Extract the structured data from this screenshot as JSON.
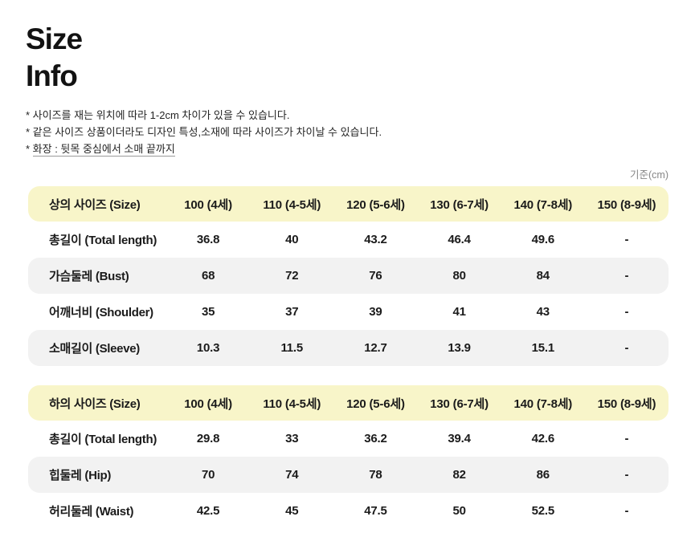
{
  "title": {
    "line1": "Size",
    "line2": "Info"
  },
  "notes": {
    "line1": "* 사이즈를 재는 위치에 따라 1-2cm 차이가 있을 수 있습니다.",
    "line2": "* 같은 사이즈 상품이더라도 디자인 특성,소재에 따라 사이즈가 차이날 수 있습니다.",
    "line3_marker": "* ",
    "line3_text": "화장 : 뒷목 중심에서 소매 끝까지"
  },
  "unit_label": "기준(cm)",
  "size_columns": [
    "100 (4세)",
    "110 (4-5세)",
    "120 (5-6세)",
    "130 (6-7세)",
    "140 (7-8세)",
    "150 (8-9세)"
  ],
  "tables": [
    {
      "header": "상의 사이즈 (Size)",
      "rows": [
        {
          "label": "총길이 (Total length)",
          "values": [
            "36.8",
            "40",
            "43.2",
            "46.4",
            "49.6",
            "-"
          ]
        },
        {
          "label": "가슴둘레 (Bust)",
          "values": [
            "68",
            "72",
            "76",
            "80",
            "84",
            "-"
          ]
        },
        {
          "label": "어깨너비 (Shoulder)",
          "values": [
            "35",
            "37",
            "39",
            "41",
            "43",
            "-"
          ]
        },
        {
          "label": "소매길이 (Sleeve)",
          "values": [
            "10.3",
            "11.5",
            "12.7",
            "13.9",
            "15.1",
            "-"
          ]
        }
      ]
    },
    {
      "header": "하의 사이즈 (Size)",
      "rows": [
        {
          "label": "총길이 (Total length)",
          "values": [
            "29.8",
            "33",
            "36.2",
            "39.4",
            "42.6",
            "-"
          ]
        },
        {
          "label": "힙둘레 (Hip)",
          "values": [
            "70",
            "74",
            "78",
            "82",
            "86",
            "-"
          ]
        },
        {
          "label": "허리둘레 (Waist)",
          "values": [
            "42.5",
            "45",
            "47.5",
            "50",
            "52.5",
            "-"
          ]
        }
      ]
    }
  ],
  "colors": {
    "header_row_bg": "#f8f5c9",
    "alt_row_bg": "#f2f2f2",
    "text": "#1b1b1b",
    "muted": "#868686"
  }
}
